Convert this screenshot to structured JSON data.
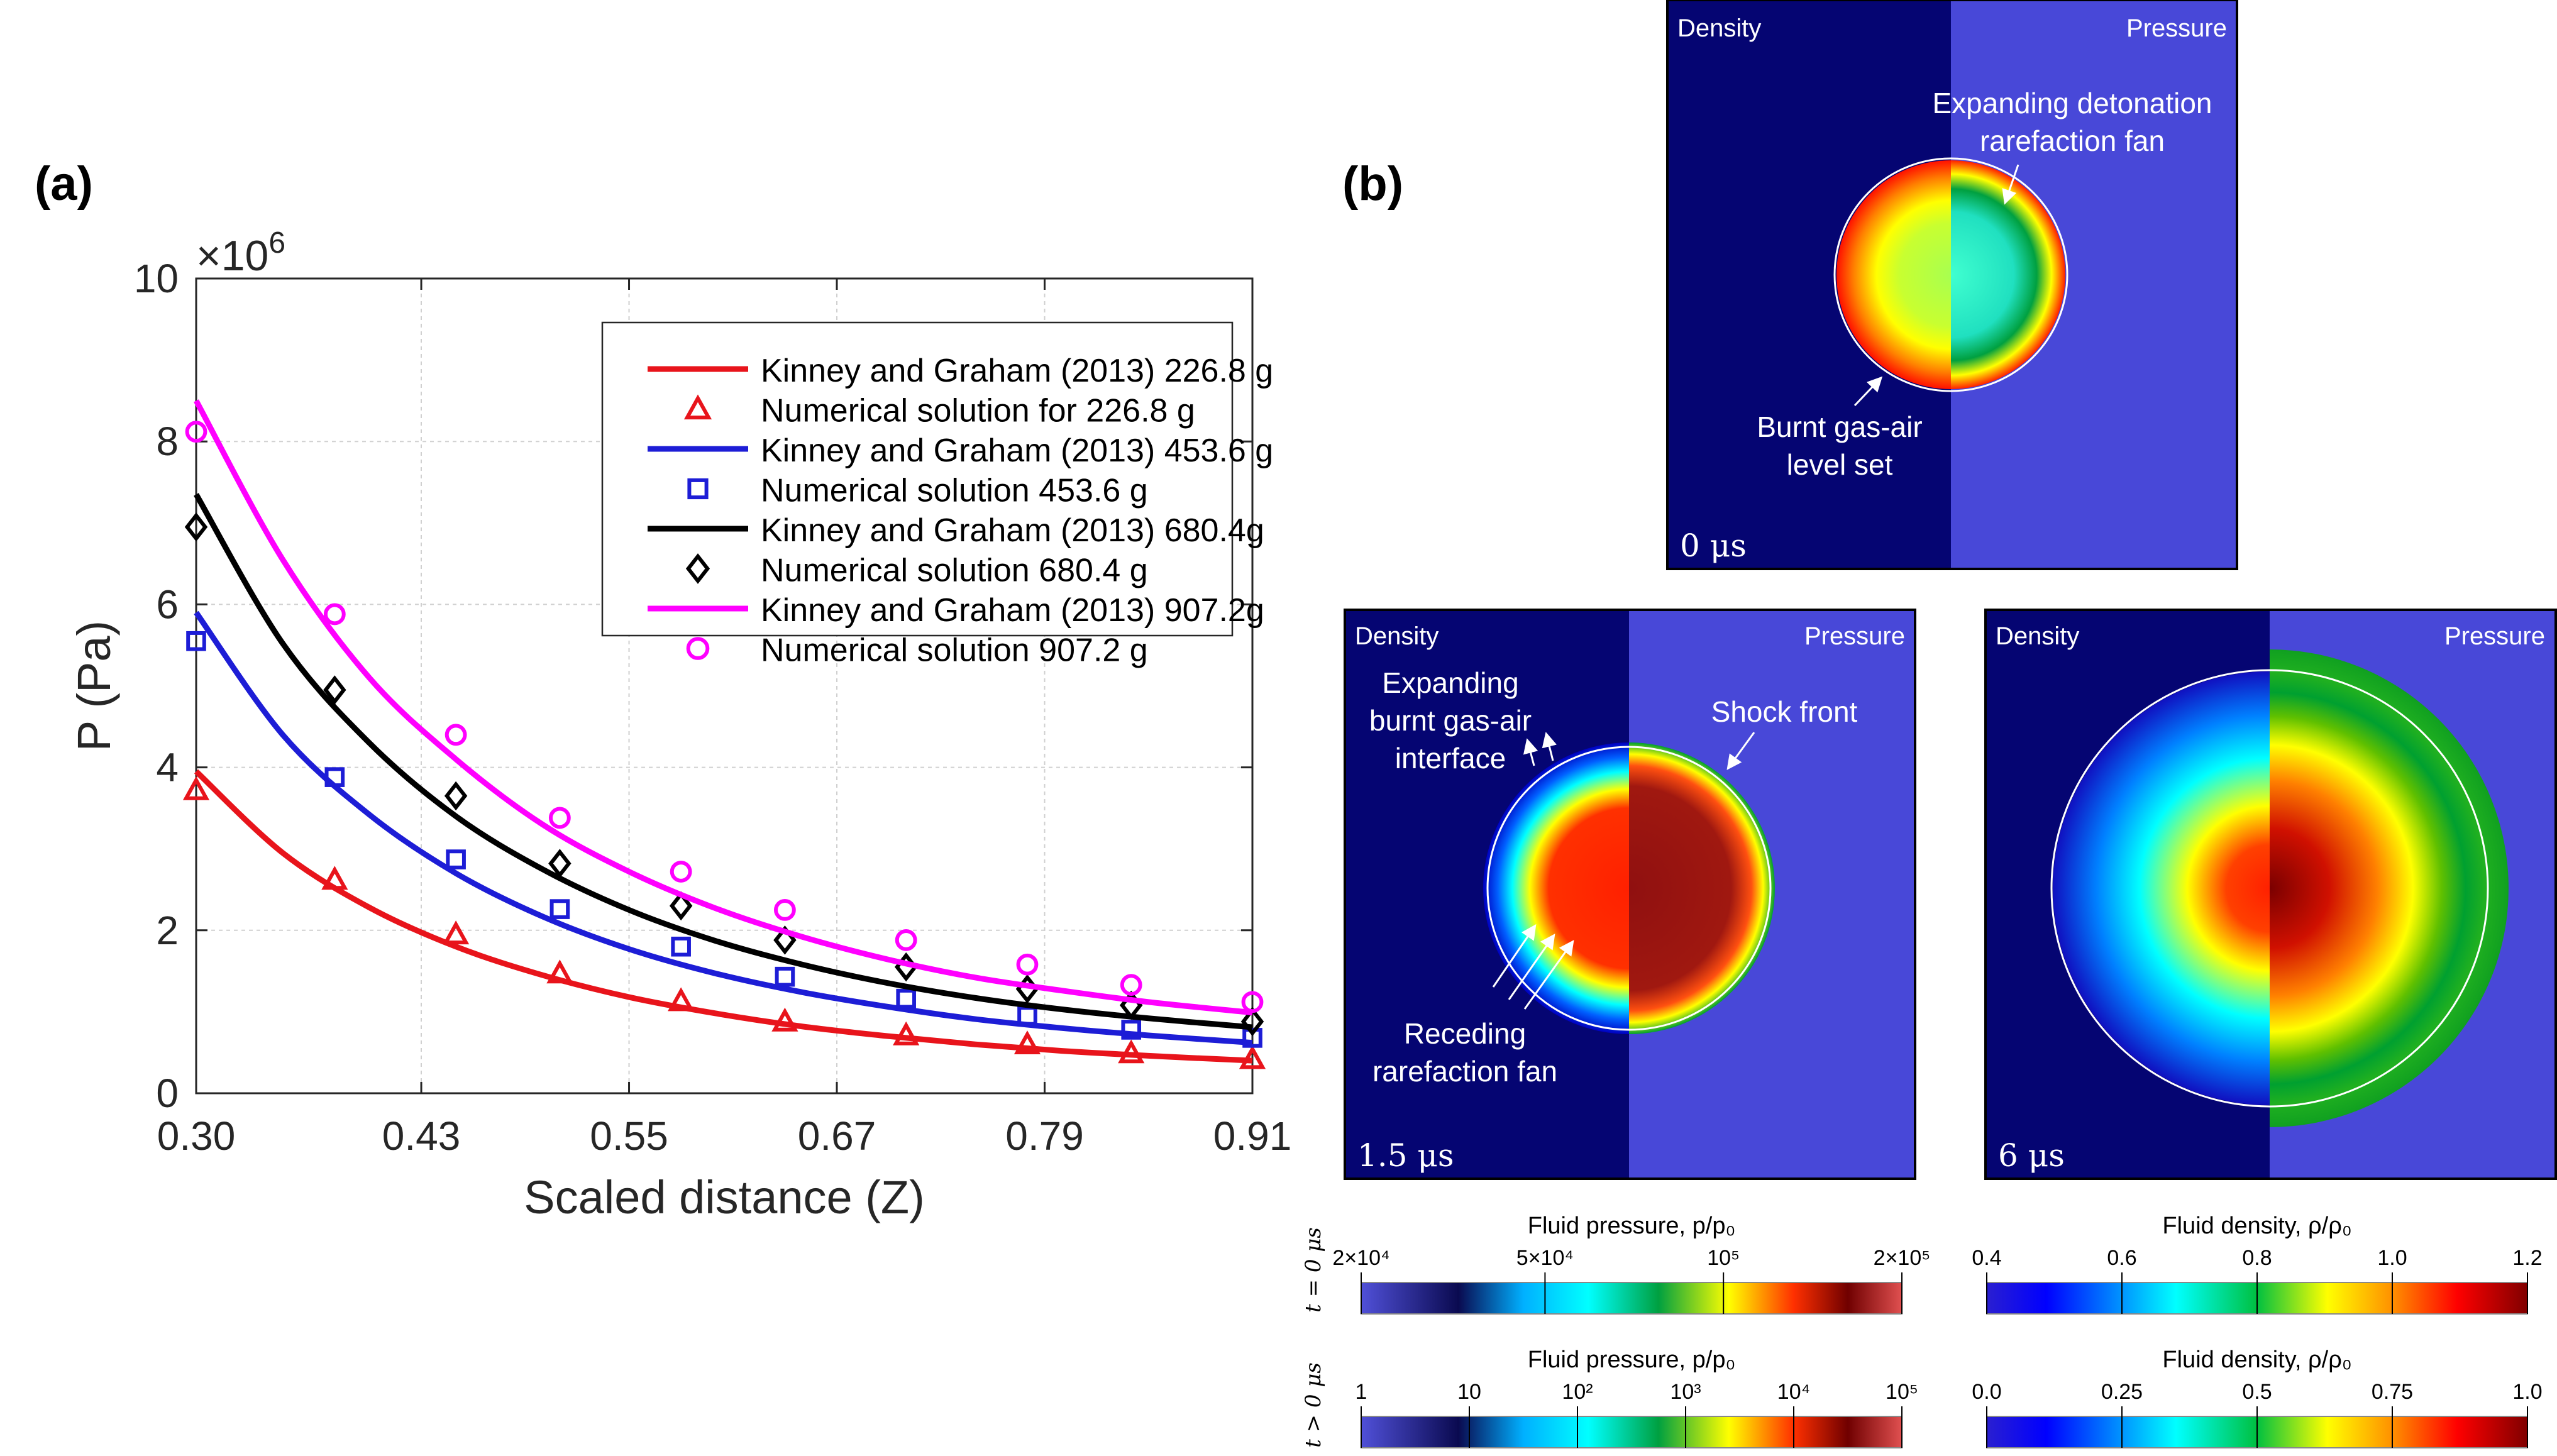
{
  "chart_data": [
    {
      "panel_label": "(a)",
      "type": "line",
      "xlabel": "Scaled distance (Z)",
      "ylabel": "P (Pa)",
      "y_multiplier_label": "×10",
      "y_multiplier_exponent": "6",
      "xlim": [
        0.3,
        0.91
      ],
      "ylim": [
        0,
        10
      ],
      "x_ticks": [
        "0.30",
        "0.43",
        "0.55",
        "0.67",
        "0.79",
        "0.91"
      ],
      "x_tick_values": [
        0.3,
        0.43,
        0.55,
        0.67,
        0.79,
        0.91
      ],
      "y_ticks": [
        "0",
        "2",
        "4",
        "6",
        "8",
        "10"
      ],
      "y_tick_values": [
        0,
        2,
        4,
        6,
        8,
        10
      ],
      "grid": true,
      "legend_position": "top-right",
      "series": [
        {
          "name": "Kinney and Graham (2013) 226.8 g",
          "kind": "line",
          "color": "#e8141b",
          "x": [
            0.3,
            0.35,
            0.4,
            0.45,
            0.5,
            0.55,
            0.6,
            0.65,
            0.7,
            0.75,
            0.8,
            0.85,
            0.91
          ],
          "values": [
            3.95,
            2.95,
            2.28,
            1.8,
            1.45,
            1.18,
            0.98,
            0.82,
            0.7,
            0.6,
            0.52,
            0.46,
            0.4
          ]
        },
        {
          "name": "Numerical solution for 226.8 g",
          "kind": "marker",
          "marker": "triangle",
          "color": "#e8141b",
          "x": [
            0.3,
            0.38,
            0.45,
            0.51,
            0.58,
            0.64,
            0.71,
            0.78,
            0.84,
            0.91
          ],
          "values": [
            3.72,
            2.62,
            1.95,
            1.47,
            1.13,
            0.88,
            0.71,
            0.6,
            0.49,
            0.42
          ]
        },
        {
          "name": "Kinney and Graham (2013) 453.6 g",
          "kind": "line",
          "color": "#1d1dd6",
          "x": [
            0.3,
            0.35,
            0.4,
            0.45,
            0.5,
            0.55,
            0.6,
            0.65,
            0.7,
            0.75,
            0.8,
            0.85,
            0.91
          ],
          "values": [
            5.9,
            4.4,
            3.42,
            2.7,
            2.17,
            1.77,
            1.47,
            1.24,
            1.06,
            0.91,
            0.8,
            0.71,
            0.62
          ]
        },
        {
          "name": "Numerical solution 453.6 g",
          "kind": "marker",
          "marker": "square",
          "color": "#1d1dd6",
          "x": [
            0.3,
            0.38,
            0.45,
            0.51,
            0.58,
            0.64,
            0.71,
            0.78,
            0.84,
            0.91
          ],
          "values": [
            5.55,
            3.88,
            2.87,
            2.26,
            1.8,
            1.43,
            1.16,
            0.95,
            0.78,
            0.68
          ]
        },
        {
          "name": "Kinney and Graham (2013) 680.4g",
          "kind": "line",
          "color": "#000000",
          "x": [
            0.3,
            0.35,
            0.4,
            0.45,
            0.5,
            0.55,
            0.6,
            0.65,
            0.7,
            0.75,
            0.8,
            0.85,
            0.91
          ],
          "values": [
            7.35,
            5.52,
            4.3,
            3.4,
            2.75,
            2.25,
            1.87,
            1.58,
            1.35,
            1.17,
            1.03,
            0.92,
            0.81
          ]
        },
        {
          "name": "Numerical solution 680.4 g",
          "kind": "marker",
          "marker": "diamond",
          "color": "#000000",
          "x": [
            0.3,
            0.38,
            0.45,
            0.51,
            0.58,
            0.64,
            0.71,
            0.78,
            0.84,
            0.91
          ],
          "values": [
            6.95,
            4.95,
            3.65,
            2.82,
            2.3,
            1.88,
            1.55,
            1.28,
            1.08,
            0.88
          ]
        },
        {
          "name": "Kinney and Graham (2013) 907.2g",
          "kind": "line",
          "color": "#ff00ff",
          "x": [
            0.3,
            0.35,
            0.4,
            0.45,
            0.5,
            0.55,
            0.6,
            0.65,
            0.7,
            0.75,
            0.8,
            0.85,
            0.91
          ],
          "values": [
            8.5,
            6.55,
            5.1,
            4.1,
            3.3,
            2.72,
            2.27,
            1.92,
            1.64,
            1.42,
            1.26,
            1.12,
            0.99
          ]
        },
        {
          "name": "Numerical solution 907.2 g",
          "kind": "marker",
          "marker": "circle",
          "color": "#ff00ff",
          "x": [
            0.3,
            0.38,
            0.45,
            0.51,
            0.58,
            0.64,
            0.71,
            0.78,
            0.84,
            0.91
          ],
          "values": [
            8.12,
            5.88,
            4.4,
            3.38,
            2.72,
            2.25,
            1.88,
            1.58,
            1.33,
            1.12
          ]
        }
      ]
    },
    {
      "panel_label": "(b)",
      "type": "heatmap",
      "simulation_frames": [
        {
          "time_label": "0 μs",
          "left_label": "Density",
          "right_label": "Pressure",
          "annotations": [
            "Expanding detonation\nrarefaction fan",
            "Burnt gas-air\nlevel set"
          ]
        },
        {
          "time_label": "1.5 μs",
          "left_label": "Density",
          "right_label": "Pressure",
          "annotations": [
            "Expanding\nburnt gas-air\ninterface",
            "Shock front",
            "Receding\nrarefaction fan"
          ]
        },
        {
          "time_label": "6 μs",
          "left_label": "Density",
          "right_label": "Pressure",
          "annotations": []
        }
      ],
      "colorbars": [
        {
          "row_label": "t = 0 μs",
          "title": "Fluid pressure, p/p₀",
          "ticks": [
            "2×10⁴",
            "5×10⁴",
            "10⁵",
            "2×10⁵"
          ]
        },
        {
          "row_label": "t = 0 μs",
          "title": "Fluid density, ρ/ρ₀",
          "ticks": [
            "0.4",
            "0.6",
            "0.8",
            "1.0",
            "1.2"
          ]
        },
        {
          "row_label": "t > 0 μs",
          "title": "Fluid pressure, p/p₀",
          "ticks": [
            "1",
            "10",
            "10²",
            "10³",
            "10⁴",
            "10⁵"
          ]
        },
        {
          "row_label": "t > 0 μs",
          "title": "Fluid density, ρ/ρ₀",
          "ticks": [
            "0.0",
            "0.25",
            "0.5",
            "0.75",
            "1.0"
          ]
        }
      ]
    }
  ]
}
